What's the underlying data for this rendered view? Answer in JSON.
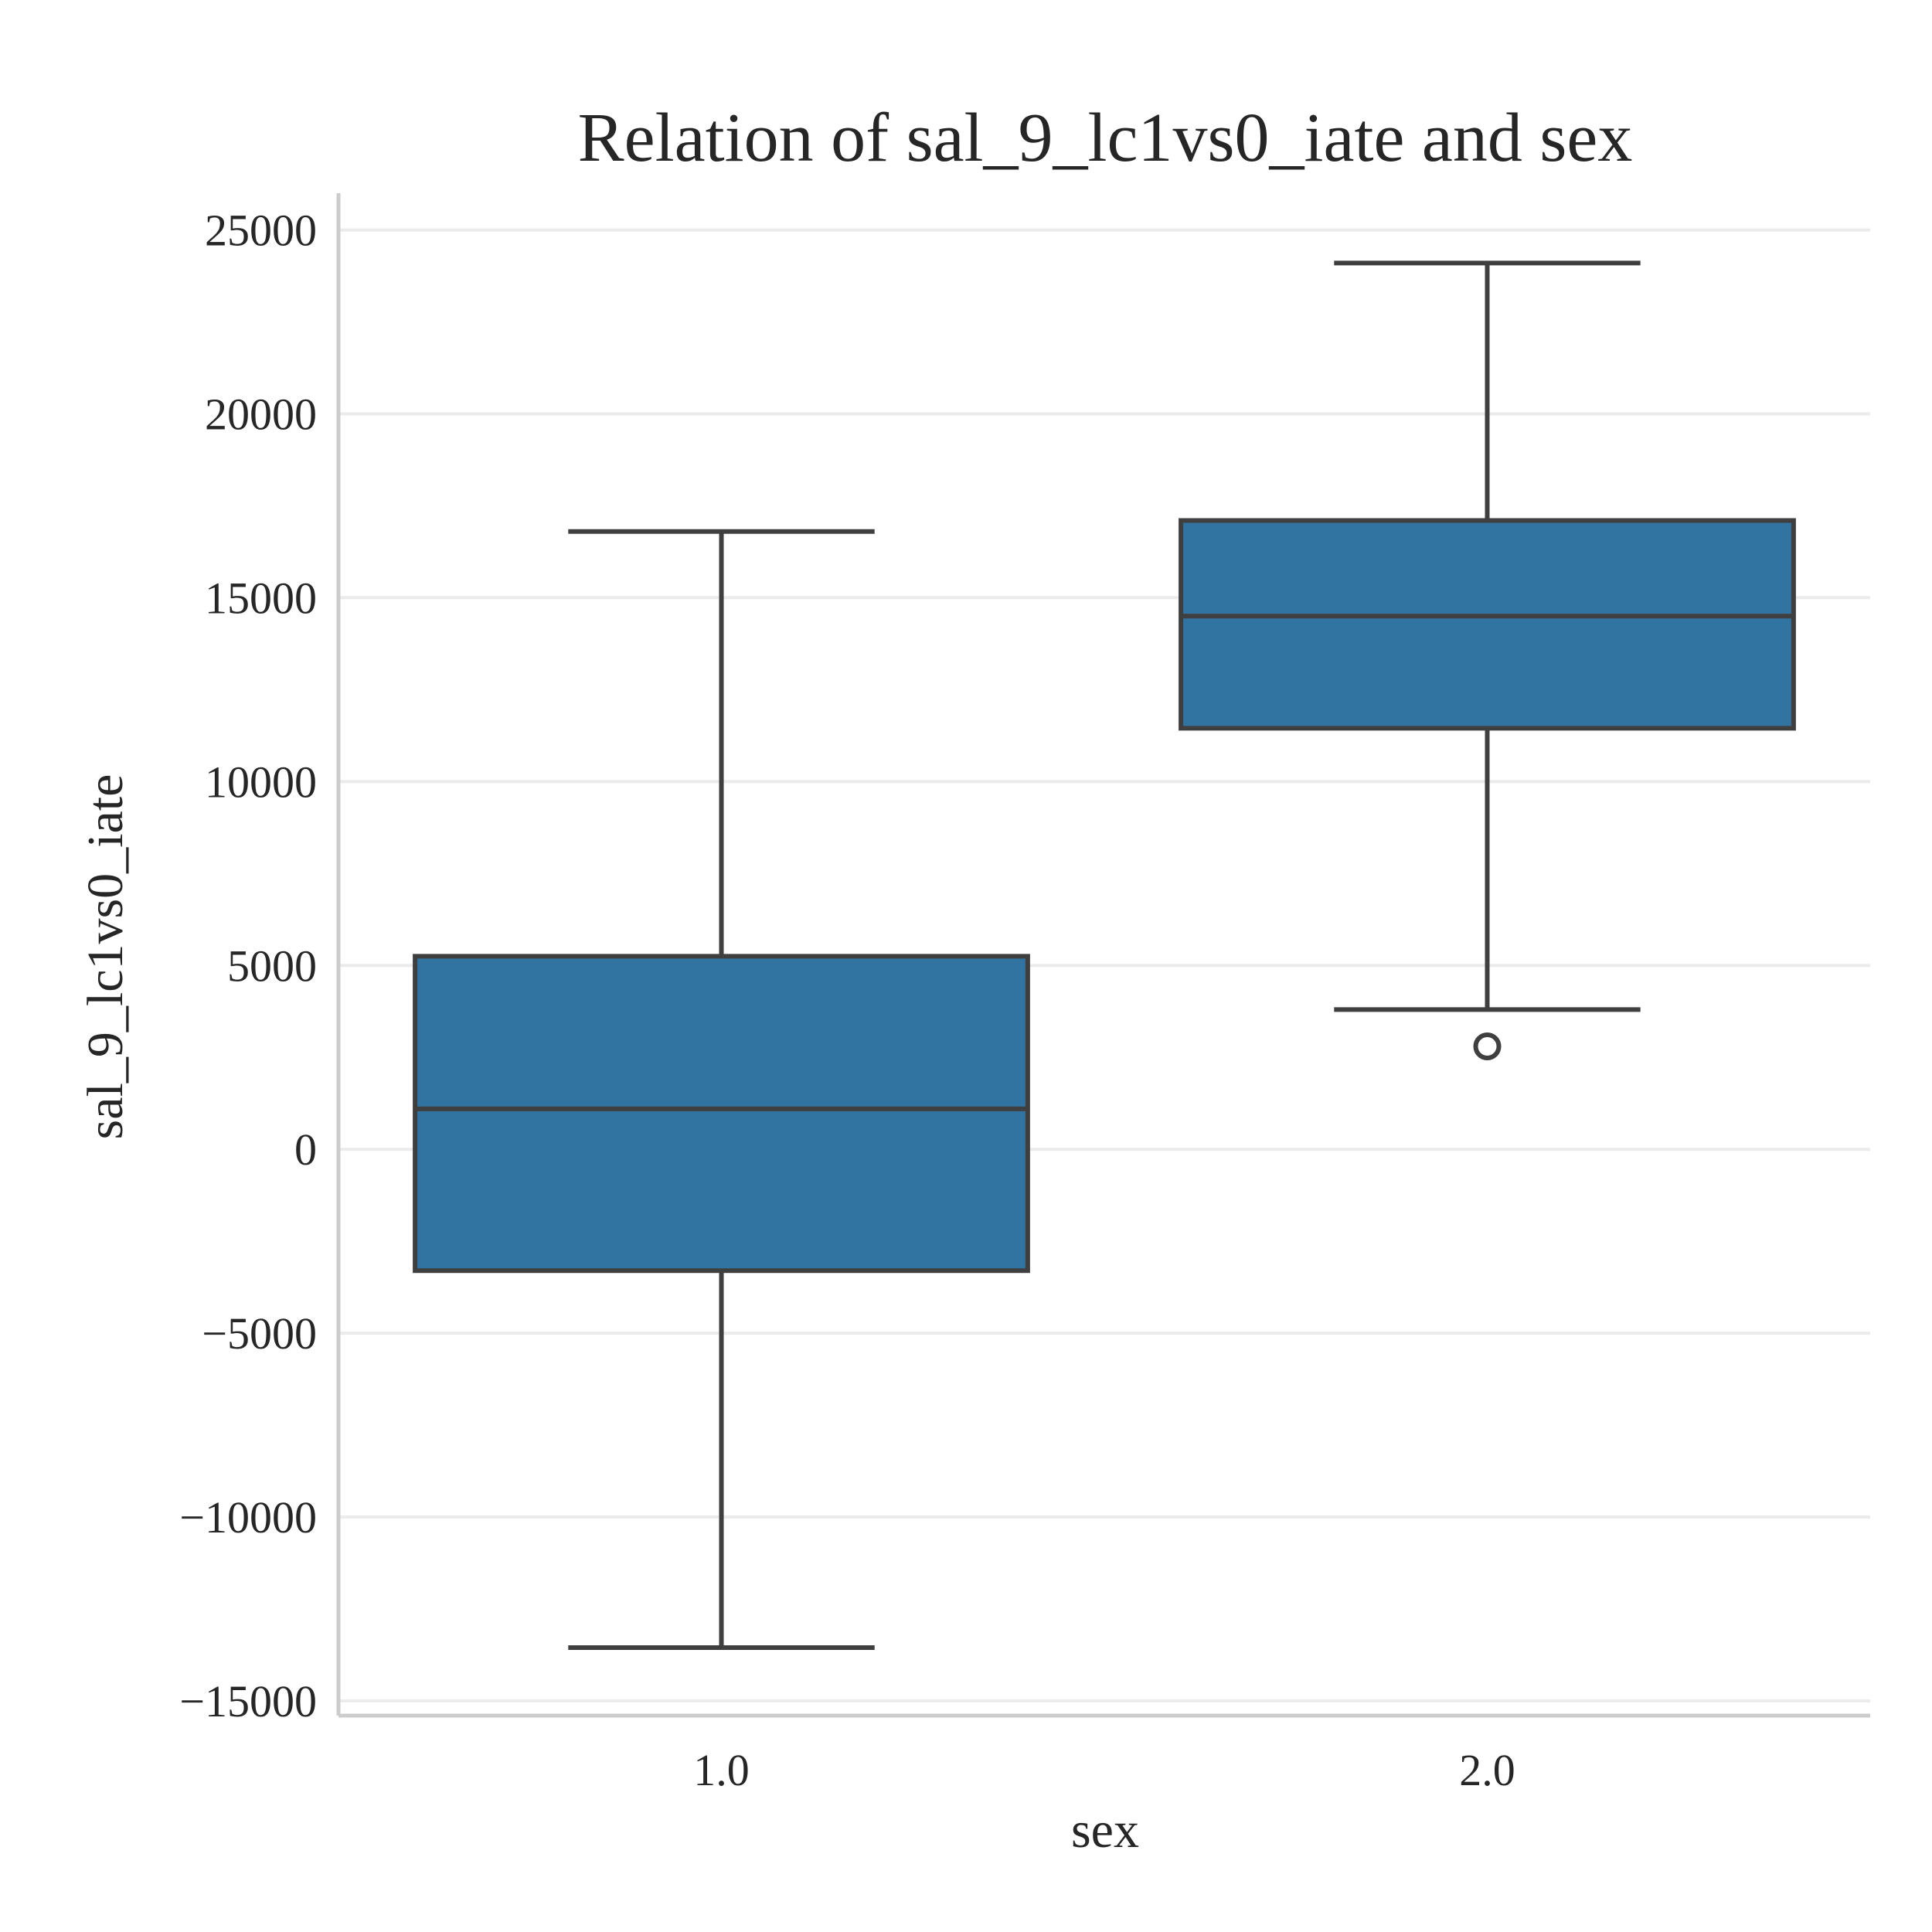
{
  "chart_data": {
    "type": "box",
    "title": "Relation of sal_9_lc1vs0_iate and sex",
    "xlabel": "sex",
    "ylabel": "sal_9_lc1vs0_iate",
    "ylim": [
      -15400,
      26000
    ],
    "yticks": [
      -15000,
      -10000,
      -5000,
      0,
      5000,
      10000,
      15000,
      20000,
      25000
    ],
    "ytick_labels": [
      "−15000",
      "−10000",
      "−5000",
      "0",
      "5000",
      "10000",
      "15000",
      "20000",
      "25000"
    ],
    "grid": "horizontal",
    "categories": [
      "1.0",
      "2.0"
    ],
    "boxes": [
      {
        "category": "1.0",
        "whisker_low": -13550,
        "q1": -3300,
        "median": 1100,
        "q3": 5250,
        "whisker_high": 16800,
        "outliers": []
      },
      {
        "category": "2.0",
        "whisker_low": 3800,
        "q1": 11450,
        "median": 14500,
        "q3": 17100,
        "whisker_high": 24100,
        "outliers": [
          2800
        ]
      }
    ],
    "colors": {
      "box_fill": "#3274a1",
      "line": "#3f3f3f",
      "grid": "#ebebeb",
      "spine": "#cccccc",
      "text": "#262626"
    }
  }
}
